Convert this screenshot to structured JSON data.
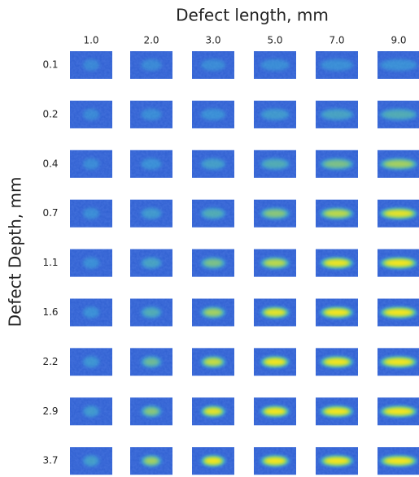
{
  "header": {
    "title": "Defect length, mm",
    "y_label": "Defect Depth, mm"
  },
  "columns": [
    "1.0",
    "2.0",
    "3.0",
    "5.0",
    "7.0",
    "9.0"
  ],
  "rows": [
    "0.1",
    "0.2",
    "0.4",
    "0.7",
    "1.1",
    "1.6",
    "2.2",
    "2.9",
    "3.7"
  ]
}
